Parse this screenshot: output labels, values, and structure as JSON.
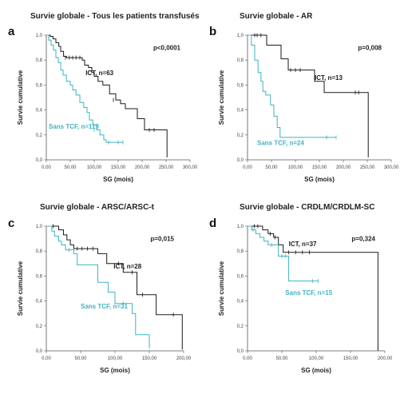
{
  "colors": {
    "ict": "#1a1a1a",
    "sans_tcf": "#3fb3c2",
    "axis": "#555555"
  },
  "chart_data": [
    {
      "type": "line",
      "letter": "a",
      "title": "Survie globale - Tous les patients transfusés",
      "xlabel": "SG (mois)",
      "ylabel": "Survie cumulative",
      "xlim": [
        0,
        300
      ],
      "ylim": [
        0,
        1.0
      ],
      "xticks": [
        "0,00",
        "50,00",
        "100,00",
        "150,00",
        "200,00",
        "250,00",
        "300,00"
      ],
      "yticks": [
        "0,0",
        "0,2",
        "0,4",
        "0,6",
        "0,8",
        "1,0"
      ],
      "p_value": "p<0,0001",
      "series": [
        {
          "name": "ICT, n=63",
          "color_key": "ict",
          "steps": [
            [
              0,
              1.0
            ],
            [
              8,
              0.99
            ],
            [
              14,
              0.97
            ],
            [
              20,
              0.94
            ],
            [
              26,
              0.91
            ],
            [
              30,
              0.87
            ],
            [
              36,
              0.83
            ],
            [
              42,
              0.82
            ],
            [
              75,
              0.8
            ],
            [
              80,
              0.76
            ],
            [
              88,
              0.74
            ],
            [
              95,
              0.7
            ],
            [
              100,
              0.67
            ],
            [
              108,
              0.63
            ],
            [
              118,
              0.6
            ],
            [
              132,
              0.53
            ],
            [
              145,
              0.48
            ],
            [
              155,
              0.45
            ],
            [
              165,
              0.41
            ],
            [
              190,
              0.33
            ],
            [
              205,
              0.24
            ],
            [
              252,
              0.02
            ]
          ],
          "censors": [
            [
              40,
              0.82
            ],
            [
              48,
              0.82
            ],
            [
              55,
              0.82
            ],
            [
              62,
              0.82
            ],
            [
              70,
              0.82
            ],
            [
              140,
              0.48
            ],
            [
              215,
              0.24
            ],
            [
              225,
              0.24
            ]
          ],
          "label_pos": [
            82,
            0.68
          ]
        },
        {
          "name": "Sans TCF, n=119",
          "color_key": "sans_tcf",
          "steps": [
            [
              0,
              1.0
            ],
            [
              5,
              0.96
            ],
            [
              10,
              0.92
            ],
            [
              15,
              0.88
            ],
            [
              20,
              0.82
            ],
            [
              25,
              0.78
            ],
            [
              30,
              0.72
            ],
            [
              35,
              0.68
            ],
            [
              42,
              0.63
            ],
            [
              50,
              0.6
            ],
            [
              55,
              0.56
            ],
            [
              62,
              0.52
            ],
            [
              70,
              0.46
            ],
            [
              78,
              0.42
            ],
            [
              85,
              0.38
            ],
            [
              90,
              0.32
            ],
            [
              97,
              0.28
            ],
            [
              105,
              0.24
            ],
            [
              112,
              0.2
            ],
            [
              120,
              0.16
            ],
            [
              125,
              0.14
            ]
          ],
          "censors": [
            [
              100,
              0.24
            ],
            [
              130,
              0.14
            ],
            [
              150,
              0.14
            ],
            [
              160,
              0.14
            ]
          ],
          "label_pos": [
            5,
            0.25
          ]
        }
      ]
    },
    {
      "type": "line",
      "letter": "b",
      "title": "Survie globale - AR",
      "xlabel": "SG (mois)",
      "ylabel": "Survie cumulative",
      "xlim": [
        0,
        300
      ],
      "ylim": [
        0,
        1.0
      ],
      "xticks": [
        "0,00",
        "50,00",
        "100,00",
        "150,00",
        "200,00",
        "250,00",
        "300,00"
      ],
      "yticks": [
        "0,0",
        "0,2",
        "0,4",
        "0,6",
        "0,8",
        "1,0"
      ],
      "p_value": "p=0,008",
      "series": [
        {
          "name": "ICT, n=13",
          "color_key": "ict",
          "steps": [
            [
              0,
              1.0
            ],
            [
              40,
              0.92
            ],
            [
              70,
              0.81
            ],
            [
              85,
              0.72
            ],
            [
              140,
              0.63
            ],
            [
              160,
              0.54
            ],
            [
              252,
              0.02
            ]
          ],
          "censors": [
            [
              15,
              1.0
            ],
            [
              20,
              1.0
            ],
            [
              28,
              1.0
            ],
            [
              90,
              0.72
            ],
            [
              100,
              0.72
            ],
            [
              110,
              0.72
            ],
            [
              225,
              0.54
            ],
            [
              232,
              0.54
            ]
          ],
          "label_pos": [
            140,
            0.64
          ]
        },
        {
          "name": "Sans TCF, n=24",
          "color_key": "sans_tcf",
          "steps": [
            [
              0,
              1.0
            ],
            [
              8,
              0.92
            ],
            [
              15,
              0.8
            ],
            [
              22,
              0.7
            ],
            [
              28,
              0.63
            ],
            [
              32,
              0.55
            ],
            [
              38,
              0.52
            ],
            [
              48,
              0.44
            ],
            [
              55,
              0.35
            ],
            [
              62,
              0.26
            ],
            [
              68,
              0.18
            ]
          ],
          "censors": [
            [
              165,
              0.18
            ],
            [
              185,
              0.18
            ]
          ],
          "label_pos": [
            20,
            0.12
          ]
        }
      ]
    },
    {
      "type": "line",
      "letter": "c",
      "title": "Survie globale - ARSC/ARSC-t",
      "xlabel": "SG (mois)",
      "ylabel": "Survie cumulative",
      "xlim": [
        0,
        200
      ],
      "ylim": [
        0,
        1.0
      ],
      "xticks": [
        "0,00",
        "50,00",
        "100,00",
        "150,00",
        "200,00"
      ],
      "yticks": [
        "0,0",
        "0,2",
        "0,4",
        "0,6",
        "0,8",
        "1,0"
      ],
      "p_value": "p=0,015",
      "series": [
        {
          "name": "ICT, n=28",
          "color_key": "ict",
          "steps": [
            [
              0,
              1.0
            ],
            [
              18,
              0.97
            ],
            [
              25,
              0.93
            ],
            [
              30,
              0.89
            ],
            [
              35,
              0.85
            ],
            [
              40,
              0.82
            ],
            [
              75,
              0.78
            ],
            [
              88,
              0.7
            ],
            [
              112,
              0.63
            ],
            [
              132,
              0.45
            ],
            [
              160,
              0.29
            ],
            [
              198,
              0.01
            ]
          ],
          "censors": [
            [
              10,
              1.0
            ],
            [
              45,
              0.82
            ],
            [
              52,
              0.82
            ],
            [
              60,
              0.82
            ],
            [
              68,
              0.82
            ],
            [
              105,
              0.7
            ],
            [
              125,
              0.63
            ],
            [
              140,
              0.45
            ],
            [
              185,
              0.29
            ]
          ],
          "label_pos": [
            98,
            0.66
          ]
        },
        {
          "name": "Sans TCF, n=31",
          "color_key": "sans_tcf",
          "steps": [
            [
              0,
              1.0
            ],
            [
              8,
              0.96
            ],
            [
              12,
              0.92
            ],
            [
              18,
              0.88
            ],
            [
              22,
              0.85
            ],
            [
              28,
              0.81
            ],
            [
              40,
              0.78
            ],
            [
              45,
              0.69
            ],
            [
              75,
              0.55
            ],
            [
              90,
              0.47
            ],
            [
              100,
              0.38
            ],
            [
              125,
              0.3
            ],
            [
              130,
              0.13
            ],
            [
              150,
              0.02
            ]
          ],
          "censors": [
            [
              33,
              0.81
            ],
            [
              112,
              0.38
            ]
          ],
          "label_pos": [
            50,
            0.34
          ]
        }
      ]
    },
    {
      "type": "line",
      "letter": "d",
      "title": "Survie globale - CRDLM/CRDLM-SC",
      "xlabel": "SG (mois)",
      "ylabel": "Survie cumulative",
      "xlim": [
        0,
        200
      ],
      "ylim": [
        0,
        1.0
      ],
      "xticks": [
        "0,00",
        "50,00",
        "100,00",
        "150,00",
        "200,00"
      ],
      "yticks": [
        "0,0",
        "0,2",
        "0,4",
        "0,6",
        "0,8",
        "1,0"
      ],
      "p_value": "p=0,324",
      "series": [
        {
          "name": "ICT, n=37",
          "color_key": "ict",
          "steps": [
            [
              0,
              1.0
            ],
            [
              22,
              0.97
            ],
            [
              30,
              0.94
            ],
            [
              38,
              0.91
            ],
            [
              45,
              0.85
            ],
            [
              52,
              0.79
            ],
            [
              190,
              0.0
            ]
          ],
          "censors": [
            [
              10,
              1.0
            ],
            [
              15,
              1.0
            ],
            [
              33,
              0.94
            ],
            [
              40,
              0.91
            ],
            [
              60,
              0.79
            ],
            [
              70,
              0.79
            ],
            [
              80,
              0.79
            ],
            [
              90,
              0.79
            ]
          ],
          "label_pos": [
            60,
            0.84
          ]
        },
        {
          "name": "Sans TCF, n=15",
          "color_key": "sans_tcf",
          "steps": [
            [
              0,
              1.0
            ],
            [
              6,
              0.97
            ],
            [
              12,
              0.94
            ],
            [
              18,
              0.91
            ],
            [
              24,
              0.88
            ],
            [
              30,
              0.85
            ],
            [
              45,
              0.76
            ],
            [
              60,
              0.56
            ]
          ],
          "censors": [
            [
              8,
              0.97
            ],
            [
              35,
              0.85
            ],
            [
              50,
              0.76
            ],
            [
              55,
              0.76
            ],
            [
              95,
              0.56
            ],
            [
              103,
              0.56
            ]
          ],
          "label_pos": [
            55,
            0.45
          ]
        }
      ]
    }
  ]
}
